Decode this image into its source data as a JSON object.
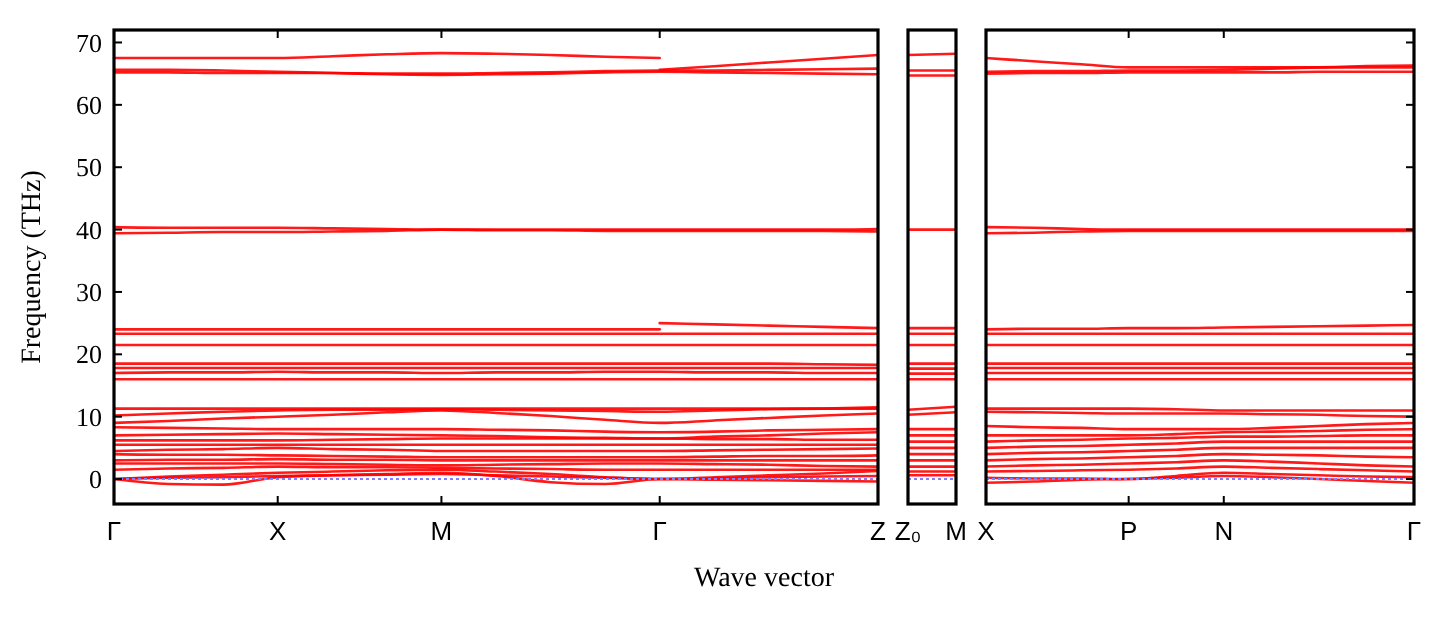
{
  "chart_data": [
    {
      "type": "line",
      "ylabel": "Frequency (THz)",
      "xlabel": "Wave vector",
      "categories": [
        "Γ",
        null,
        null,
        "X",
        null,
        null,
        "M",
        null,
        null,
        null,
        "Γ",
        null,
        null,
        null,
        "Z"
      ],
      "ylim": [
        -4,
        72
      ],
      "yticks": [
        0,
        10,
        20,
        30,
        40,
        50,
        60,
        70
      ],
      "ref_lines": [
        {
          "axis": "y",
          "value": 0,
          "color": "#8080ff",
          "line_style": "dotted"
        }
      ],
      "series": [
        {
          "color": "#ff0000",
          "values": [
            67.5,
            67.5,
            67.5,
            67.5,
            67.8,
            68.1,
            68.3,
            68.2,
            68,
            67.7,
            67.5,
            null,
            null,
            null,
            null
          ]
        },
        {
          "color": "#ff0000",
          "values": [
            null,
            null,
            null,
            null,
            null,
            null,
            null,
            null,
            null,
            null,
            65.6,
            66.2,
            66.8,
            67.4,
            68
          ]
        },
        {
          "color": "#ff0000",
          "values": [
            65.6,
            65.6,
            65.5,
            65.3,
            65.1,
            64.9,
            64.8,
            64.9,
            65,
            65.2,
            65.3,
            65.2,
            65.1,
            65,
            64.9
          ]
        },
        {
          "color": "#ff0000",
          "values": [
            65.2,
            65.2,
            65.1,
            65.1,
            65.1,
            65,
            65,
            65.1,
            65.2,
            65.4,
            65.5,
            65.5,
            65.6,
            65.7,
            65.8
          ]
        },
        {
          "color": "#ff0000",
          "values": [
            40.4,
            40.3,
            40.3,
            40.3,
            40.2,
            40.1,
            40,
            40,
            40,
            40,
            40,
            40,
            40,
            40,
            40.1
          ]
        },
        {
          "color": "#ff0000",
          "values": [
            39.4,
            39.5,
            39.6,
            39.6,
            39.7,
            39.8,
            40,
            39.9,
            39.9,
            39.8,
            39.8,
            39.8,
            39.8,
            39.8,
            39.7
          ]
        },
        {
          "color": "#ff0000",
          "values": [
            24,
            24,
            24,
            24,
            24,
            24,
            24,
            24,
            24,
            24,
            24,
            null,
            null,
            null,
            null
          ]
        },
        {
          "color": "#ff0000",
          "values": [
            null,
            null,
            null,
            null,
            null,
            null,
            null,
            null,
            null,
            null,
            25,
            24.8,
            24.6,
            24.4,
            24.2
          ]
        },
        {
          "color": "#ff0000",
          "values": [
            23.3,
            23.3,
            23.3,
            23.3,
            23.3,
            23.3,
            23.3,
            23.3,
            23.3,
            23.3,
            23.3,
            23.3,
            23.3,
            23.3,
            23.3
          ]
        },
        {
          "color": "#ff0000",
          "values": [
            21.5,
            21.5,
            21.5,
            21.5,
            21.5,
            21.5,
            21.5,
            21.5,
            21.5,
            21.5,
            21.5,
            21.5,
            21.5,
            21.5,
            21.5
          ]
        },
        {
          "color": "#ff0000",
          "values": [
            18.5,
            18.5,
            18.5,
            18.5,
            18.5,
            18.5,
            18.5,
            18.5,
            18.5,
            18.5,
            18.5,
            18.5,
            18.5,
            18.4,
            18.3
          ]
        },
        {
          "color": "#ff0000",
          "values": [
            17.8,
            17.8,
            17.8,
            17.8,
            17.8,
            17.8,
            17.8,
            17.8,
            17.8,
            17.8,
            17.8,
            17.8,
            17.8,
            17.8,
            17.8
          ]
        },
        {
          "color": "#ff0000",
          "values": [
            17,
            17.1,
            17.1,
            17.2,
            17.1,
            17.1,
            17,
            17.1,
            17.1,
            17.2,
            17.2,
            17.1,
            17.1,
            17,
            17
          ]
        },
        {
          "color": "#ff0000",
          "values": [
            16,
            16,
            16,
            16,
            16,
            16,
            16,
            16,
            16,
            16,
            16,
            16,
            16,
            16,
            16
          ]
        },
        {
          "color": "#ff0000",
          "values": [
            11.3,
            11.3,
            11.3,
            11.3,
            11.3,
            11.3,
            11.3,
            11.3,
            11.3,
            11.3,
            11.3,
            11.3,
            11.3,
            11.3,
            11.3
          ]
        },
        {
          "color": "#ff0000",
          "values": [
            10.2,
            10.5,
            10.8,
            11,
            11.1,
            11.1,
            11.2,
            11.1,
            11,
            10.9,
            10.8,
            11,
            11.2,
            11.3,
            11.5
          ]
        },
        {
          "color": "#ff0000",
          "values": [
            9,
            9.3,
            9.7,
            10,
            10.3,
            10.7,
            11,
            10.6,
            10.1,
            9.5,
            9,
            9.4,
            9.8,
            10.2,
            10.5
          ]
        },
        {
          "color": "#ff0000",
          "values": [
            8.3,
            8.2,
            8.1,
            8,
            8,
            8,
            8,
            7.9,
            7.8,
            7.6,
            7.5,
            7.6,
            7.8,
            7.9,
            8
          ]
        },
        {
          "color": "#ff0000",
          "values": [
            7,
            7.1,
            7.2,
            7.3,
            7.2,
            7.1,
            7,
            6.9,
            6.7,
            6.6,
            6.5,
            6.8,
            7,
            7.3,
            7.5
          ]
        },
        {
          "color": "#ff0000",
          "values": [
            6.2,
            6.2,
            6.2,
            6.2,
            6.3,
            6.4,
            6.5,
            6.5,
            6.5,
            6.5,
            6.5,
            6.4,
            6.4,
            6.3,
            6.3
          ]
        },
        {
          "color": "#ff0000",
          "values": [
            5.5,
            5.5,
            5.5,
            5.5,
            5.5,
            5.5,
            5.5,
            5.5,
            5.5,
            5.5,
            5.5,
            5.5,
            5.5,
            5.5,
            5.5
          ]
        },
        {
          "color": "#ff0000",
          "values": [
            4.5,
            4.7,
            4.8,
            5,
            4.8,
            4.7,
            4.5,
            4.5,
            4.5,
            4.5,
            4.5,
            4.6,
            4.7,
            4.8,
            4.9
          ]
        },
        {
          "color": "#ff0000",
          "values": [
            4,
            3.9,
            3.9,
            3.8,
            3.7,
            3.6,
            3.5,
            3.5,
            3.5,
            3.5,
            3.5,
            3.6,
            3.7,
            3.7,
            3.8
          ]
        },
        {
          "color": "#ff0000",
          "values": [
            3,
            3.1,
            3.1,
            3.2,
            3.1,
            3.1,
            3,
            3,
            3,
            3,
            3,
            3,
            3,
            3,
            3
          ]
        },
        {
          "color": "#ff0000",
          "values": [
            2.5,
            2.5,
            2.5,
            2.5,
            2.4,
            2.3,
            2.2,
            2.3,
            2.4,
            2.5,
            2.5,
            2.4,
            2.3,
            2.1,
            2
          ]
        },
        {
          "color": "#ff0000",
          "values": [
            1.5,
            1.7,
            1.8,
            2,
            1.9,
            1.9,
            1.8,
            1.7,
            1.6,
            1.5,
            1.5,
            1.5,
            1.5,
            1.5,
            1.5
          ]
        },
        {
          "color": "#ff0000",
          "values": [
            0,
            0.4,
            0.7,
            1,
            1.2,
            1.4,
            1.5,
            1.2,
            0.8,
            0.3,
            0,
            0.3,
            0.6,
            0.9,
            1.3
          ]
        },
        {
          "color": "#ff0000",
          "values": [
            0,
            0.2,
            0.3,
            0.5,
            0.6,
            0.7,
            0.8,
            0.6,
            0.4,
            0.2,
            0,
            0.1,
            0.3,
            0.4,
            0.5
          ]
        },
        {
          "color": "#ff0000",
          "values": [
            0,
            -0.8,
            -0.9,
            0.3,
            0.6,
            0.8,
            1,
            0.5,
            -0.5,
            -0.8,
            0,
            -0.1,
            -0.2,
            -0.3,
            -0.4
          ]
        }
      ]
    },
    {
      "type": "line",
      "categories": [
        "Z₀",
        "M"
      ],
      "ylim": [
        -4,
        72
      ],
      "yticks": [
        0,
        10,
        20,
        30,
        40,
        50,
        60,
        70
      ],
      "tick_labels": "x",
      "ref_lines": [
        {
          "axis": "y",
          "value": 0,
          "color": "#8080ff",
          "line_style": "dotted"
        }
      ],
      "series": [
        {
          "color": "#ff0000",
          "values": [
            68,
            68.2
          ]
        },
        {
          "color": "#ff0000",
          "values": [
            65.5,
            65.5
          ]
        },
        {
          "color": "#ff0000",
          "values": [
            64.7,
            64.7
          ]
        },
        {
          "color": "#ff0000",
          "values": [
            40,
            40
          ]
        },
        {
          "color": "#ff0000",
          "values": [
            24.2,
            24.2
          ]
        },
        {
          "color": "#ff0000",
          "values": [
            23.3,
            23.3
          ]
        },
        {
          "color": "#ff0000",
          "values": [
            21.5,
            21.5
          ]
        },
        {
          "color": "#ff0000",
          "values": [
            18.5,
            18.5
          ]
        },
        {
          "color": "#ff0000",
          "values": [
            17.7,
            17.7
          ]
        },
        {
          "color": "#ff0000",
          "values": [
            16.9,
            16.9
          ]
        },
        {
          "color": "#ff0000",
          "values": [
            16,
            16
          ]
        },
        {
          "color": "#ff0000",
          "values": [
            11.1,
            11.6
          ]
        },
        {
          "color": "#ff0000",
          "values": [
            10.3,
            10.7
          ]
        },
        {
          "color": "#ff0000",
          "values": [
            8,
            8
          ]
        },
        {
          "color": "#ff0000",
          "values": [
            7,
            7
          ]
        },
        {
          "color": "#ff0000",
          "values": [
            6,
            6
          ]
        },
        {
          "color": "#ff0000",
          "values": [
            5,
            5
          ]
        },
        {
          "color": "#ff0000",
          "values": [
            4,
            4
          ]
        },
        {
          "color": "#ff0000",
          "values": [
            3,
            3
          ]
        },
        {
          "color": "#ff0000",
          "values": [
            2,
            2
          ]
        },
        {
          "color": "#ff0000",
          "values": [
            1.2,
            1.2
          ]
        },
        {
          "color": "#ff0000",
          "values": [
            0.6,
            0.6
          ]
        }
      ]
    },
    {
      "type": "line",
      "categories": [
        "X",
        null,
        null,
        "P",
        null,
        "N",
        null,
        null,
        null,
        "Γ"
      ],
      "ylim": [
        -4,
        72
      ],
      "yticks": [
        0,
        10,
        20,
        30,
        40,
        50,
        60,
        70
      ],
      "tick_labels": "x",
      "ref_lines": [
        {
          "axis": "y",
          "value": 0,
          "color": "#8080ff",
          "line_style": "dotted"
        }
      ],
      "series": [
        {
          "color": "#ff0000",
          "values": [
            67.5,
            67,
            66.5,
            66,
            66,
            66,
            66,
            66,
            66,
            66
          ]
        },
        {
          "color": "#ff0000",
          "values": [
            65.3,
            65.4,
            65.4,
            65.5,
            65.5,
            65.6,
            65.8,
            66,
            66.2,
            66.3
          ]
        },
        {
          "color": "#ff0000",
          "values": [
            65,
            65.1,
            65.1,
            65.2,
            65.2,
            65.2,
            65.2,
            65.3,
            65.3,
            65.3
          ]
        },
        {
          "color": "#ff0000",
          "values": [
            40.4,
            40.3,
            40.1,
            40,
            40,
            40,
            40,
            40,
            40,
            40
          ]
        },
        {
          "color": "#ff0000",
          "values": [
            39.4,
            39.5,
            39.7,
            39.8,
            39.8,
            39.8,
            39.8,
            39.8,
            39.8,
            39.8
          ]
        },
        {
          "color": "#ff0000",
          "values": [
            24,
            24.1,
            24.1,
            24.2,
            24.2,
            24.3,
            24.4,
            24.5,
            24.6,
            24.7
          ]
        },
        {
          "color": "#ff0000",
          "values": [
            23.3,
            23.3,
            23.3,
            23.3,
            23.3,
            23.3,
            23.3,
            23.3,
            23.3,
            23.3
          ]
        },
        {
          "color": "#ff0000",
          "values": [
            21.5,
            21.5,
            21.5,
            21.5,
            21.5,
            21.5,
            21.5,
            21.5,
            21.5,
            21.5
          ]
        },
        {
          "color": "#ff0000",
          "values": [
            18.5,
            18.5,
            18.5,
            18.5,
            18.5,
            18.5,
            18.5,
            18.5,
            18.5,
            18.5
          ]
        },
        {
          "color": "#ff0000",
          "values": [
            17.8,
            17.8,
            17.8,
            17.8,
            17.8,
            17.8,
            17.8,
            17.8,
            17.8,
            17.8
          ]
        },
        {
          "color": "#ff0000",
          "values": [
            17,
            17,
            17,
            17,
            17,
            17,
            17,
            17,
            17,
            17
          ]
        },
        {
          "color": "#ff0000",
          "values": [
            16,
            16,
            16,
            16,
            16,
            16,
            16,
            16,
            16,
            16
          ]
        },
        {
          "color": "#ff0000",
          "values": [
            11.3,
            11.3,
            11.3,
            11.3,
            11.2,
            11,
            11,
            11,
            11,
            11
          ]
        },
        {
          "color": "#ff0000",
          "values": [
            10.8,
            10.7,
            10.6,
            10.5,
            10.5,
            10.5,
            10.4,
            10.3,
            10.1,
            10
          ]
        },
        {
          "color": "#ff0000",
          "values": [
            8.5,
            8.3,
            8.2,
            8,
            8,
            8,
            8.2,
            8.5,
            8.8,
            9
          ]
        },
        {
          "color": "#ff0000",
          "values": [
            7,
            7,
            7,
            7,
            7.2,
            7.5,
            7.6,
            7.7,
            7.9,
            8
          ]
        },
        {
          "color": "#ff0000",
          "values": [
            6,
            6.2,
            6.3,
            6.5,
            6.6,
            6.8,
            6.8,
            6.9,
            7,
            7
          ]
        },
        {
          "color": "#ff0000",
          "values": [
            5,
            5.2,
            5.3,
            5.5,
            5.7,
            6,
            6,
            6,
            6,
            6
          ]
        },
        {
          "color": "#ff0000",
          "values": [
            4,
            4.2,
            4.3,
            4.5,
            4.7,
            5,
            5,
            5,
            5,
            5
          ]
        },
        {
          "color": "#ff0000",
          "values": [
            3,
            3.2,
            3.3,
            3.5,
            3.7,
            4,
            3.9,
            3.8,
            3.6,
            3.5
          ]
        },
        {
          "color": "#ff0000",
          "values": [
            2,
            2.2,
            2.3,
            2.5,
            2.7,
            3,
            2.8,
            2.5,
            2.2,
            2
          ]
        },
        {
          "color": "#ff0000",
          "values": [
            1.2,
            1.3,
            1.4,
            1.5,
            1.7,
            2,
            1.8,
            1.6,
            1.4,
            1.2
          ]
        },
        {
          "color": "#ff0000",
          "values": [
            0.2,
            0.1,
            0.1,
            0,
            0.5,
            1,
            0.8,
            0.6,
            0.4,
            0.3
          ]
        },
        {
          "color": "#ff0000",
          "values": [
            -0.6,
            -0.4,
            -0.1,
            0,
            0.2,
            0.5,
            0.3,
            0,
            -0.3,
            -0.6
          ]
        }
      ]
    }
  ]
}
